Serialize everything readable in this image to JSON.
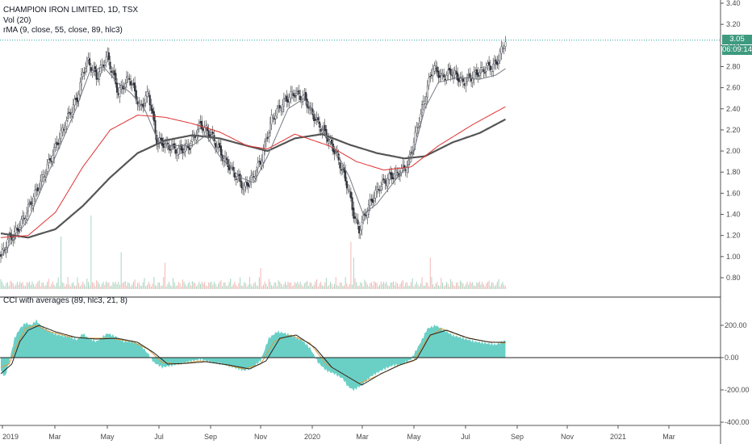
{
  "legend": {
    "symbol_line": "CHAMPION IRON LIMITED, 1D, TSX",
    "volume": "Vol (20)",
    "ma": "rMA (9, close, 55, close, 89, hlc3)",
    "cci": "CCI with averages (89, hlc3, 21, 8)"
  },
  "price_tag": {
    "last": "3.05",
    "countdown": "06:09:14",
    "color": "#3d9a7f"
  },
  "colors": {
    "up": "#26a69a",
    "down": "#ef5350",
    "body_up": "#e0e0e0",
    "ma_fast": "#787b86",
    "ma_mid": "#e03131",
    "ma_slow": "#555555",
    "cci_fill": "#6ad0c6",
    "cci_avg1": "#e09a3c"
  },
  "chart_data": {
    "type": "candlestick",
    "title": "CHAMPION IRON LIMITED, 1D, TSX",
    "x_tick_labels": [
      "2019",
      "Mar",
      "May",
      "Jul",
      "Sep",
      "Nov",
      "2020",
      "Mar",
      "May",
      "Jul",
      "Sep",
      "Nov",
      "2021",
      "Mar"
    ],
    "price_axis": {
      "ticks": [
        "3.40",
        "3.20",
        "3.00",
        "2.80",
        "2.60",
        "2.40",
        "2.20",
        "2.00",
        "1.80",
        "1.60",
        "1.40",
        "1.20",
        "1.00",
        "0.80"
      ],
      "ylim": [
        0.7,
        3.42
      ]
    },
    "cci_axis": {
      "ticks": [
        "200.00",
        "0.00",
        "-200.00",
        "-400.00"
      ],
      "ylim": [
        -420,
        270
      ]
    },
    "last_price": 3.05,
    "price_anchors": [
      [
        0,
        1.0
      ],
      [
        5,
        1.15
      ],
      [
        12,
        1.25
      ],
      [
        18,
        1.4
      ],
      [
        26,
        1.62
      ],
      [
        34,
        1.85
      ],
      [
        42,
        2.1
      ],
      [
        50,
        2.35
      ],
      [
        56,
        2.5
      ],
      [
        60,
        2.75
      ],
      [
        64,
        2.85
      ],
      [
        70,
        2.7
      ],
      [
        78,
        2.9
      ],
      [
        86,
        2.55
      ],
      [
        94,
        2.7
      ],
      [
        102,
        2.4
      ],
      [
        108,
        2.55
      ],
      [
        114,
        2.1
      ],
      [
        122,
        2.05
      ],
      [
        130,
        2.0
      ],
      [
        138,
        2.05
      ],
      [
        146,
        2.25
      ],
      [
        154,
        2.15
      ],
      [
        162,
        1.95
      ],
      [
        170,
        1.8
      ],
      [
        178,
        1.65
      ],
      [
        184,
        1.75
      ],
      [
        190,
        1.9
      ],
      [
        198,
        2.3
      ],
      [
        206,
        2.45
      ],
      [
        214,
        2.55
      ],
      [
        222,
        2.5
      ],
      [
        230,
        2.3
      ],
      [
        238,
        2.15
      ],
      [
        246,
        1.95
      ],
      [
        254,
        1.65
      ],
      [
        258,
        1.4
      ],
      [
        262,
        1.25
      ],
      [
        268,
        1.45
      ],
      [
        276,
        1.65
      ],
      [
        284,
        1.75
      ],
      [
        292,
        1.8
      ],
      [
        298,
        1.88
      ],
      [
        304,
        2.2
      ],
      [
        310,
        2.5
      ],
      [
        316,
        2.8
      ],
      [
        322,
        2.7
      ],
      [
        330,
        2.75
      ],
      [
        338,
        2.65
      ],
      [
        346,
        2.72
      ],
      [
        354,
        2.78
      ],
      [
        362,
        2.82
      ],
      [
        366,
        2.95
      ],
      [
        369,
        3.05
      ]
    ],
    "ma_fast": [
      [
        0,
        1.0
      ],
      [
        20,
        1.35
      ],
      [
        40,
        1.95
      ],
      [
        55,
        2.4
      ],
      [
        65,
        2.75
      ],
      [
        75,
        2.8
      ],
      [
        85,
        2.65
      ],
      [
        95,
        2.55
      ],
      [
        105,
        2.4
      ],
      [
        115,
        2.1
      ],
      [
        125,
        2.05
      ],
      [
        140,
        2.05
      ],
      [
        150,
        2.15
      ],
      [
        160,
        1.95
      ],
      [
        175,
        1.75
      ],
      [
        185,
        1.7
      ],
      [
        195,
        1.95
      ],
      [
        210,
        2.4
      ],
      [
        222,
        2.5
      ],
      [
        235,
        2.2
      ],
      [
        245,
        2.0
      ],
      [
        255,
        1.75
      ],
      [
        265,
        1.4
      ],
      [
        275,
        1.5
      ],
      [
        290,
        1.75
      ],
      [
        300,
        1.9
      ],
      [
        310,
        2.4
      ],
      [
        320,
        2.65
      ],
      [
        335,
        2.7
      ],
      [
        350,
        2.68
      ],
      [
        362,
        2.72
      ],
      [
        369,
        2.78
      ]
    ],
    "ma_mid": [
      [
        0,
        1.18
      ],
      [
        20,
        1.2
      ],
      [
        40,
        1.42
      ],
      [
        60,
        1.85
      ],
      [
        80,
        2.2
      ],
      [
        100,
        2.34
      ],
      [
        120,
        2.32
      ],
      [
        140,
        2.26
      ],
      [
        160,
        2.18
      ],
      [
        180,
        2.05
      ],
      [
        195,
        2.02
      ],
      [
        215,
        2.16
      ],
      [
        240,
        2.05
      ],
      [
        260,
        1.9
      ],
      [
        280,
        1.82
      ],
      [
        300,
        1.85
      ],
      [
        320,
        2.05
      ],
      [
        345,
        2.25
      ],
      [
        369,
        2.42
      ]
    ],
    "ma_slow": [
      [
        0,
        1.22
      ],
      [
        20,
        1.18
      ],
      [
        40,
        1.26
      ],
      [
        60,
        1.48
      ],
      [
        80,
        1.75
      ],
      [
        100,
        1.98
      ],
      [
        120,
        2.1
      ],
      [
        140,
        2.15
      ],
      [
        160,
        2.12
      ],
      [
        180,
        2.05
      ],
      [
        195,
        2.0
      ],
      [
        215,
        2.12
      ],
      [
        235,
        2.16
      ],
      [
        255,
        2.06
      ],
      [
        275,
        1.98
      ],
      [
        295,
        1.93
      ],
      [
        310,
        1.95
      ],
      [
        330,
        2.08
      ],
      [
        350,
        2.17
      ],
      [
        369,
        2.3
      ]
    ],
    "cci": [
      [
        0,
        -80
      ],
      [
        3,
        -120
      ],
      [
        6,
        -30
      ],
      [
        10,
        120
      ],
      [
        14,
        180
      ],
      [
        18,
        215
      ],
      [
        22,
        200
      ],
      [
        26,
        230
      ],
      [
        30,
        190
      ],
      [
        36,
        160
      ],
      [
        42,
        140
      ],
      [
        50,
        130
      ],
      [
        56,
        110
      ],
      [
        60,
        150
      ],
      [
        64,
        120
      ],
      [
        70,
        100
      ],
      [
        78,
        150
      ],
      [
        84,
        130
      ],
      [
        90,
        100
      ],
      [
        96,
        100
      ],
      [
        102,
        80
      ],
      [
        108,
        20
      ],
      [
        112,
        -30
      ],
      [
        118,
        -60
      ],
      [
        124,
        -50
      ],
      [
        130,
        -40
      ],
      [
        138,
        -25
      ],
      [
        146,
        -10
      ],
      [
        154,
        -30
      ],
      [
        162,
        -40
      ],
      [
        170,
        -60
      ],
      [
        178,
        -80
      ],
      [
        184,
        -60
      ],
      [
        190,
        -20
      ],
      [
        196,
        120
      ],
      [
        202,
        160
      ],
      [
        208,
        150
      ],
      [
        214,
        130
      ],
      [
        220,
        110
      ],
      [
        226,
        60
      ],
      [
        232,
        -30
      ],
      [
        238,
        -80
      ],
      [
        244,
        -100
      ],
      [
        250,
        -130
      ],
      [
        254,
        -180
      ],
      [
        258,
        -200
      ],
      [
        264,
        -170
      ],
      [
        270,
        -120
      ],
      [
        278,
        -80
      ],
      [
        286,
        -50
      ],
      [
        294,
        -40
      ],
      [
        300,
        -10
      ],
      [
        306,
        80
      ],
      [
        312,
        180
      ],
      [
        318,
        200
      ],
      [
        324,
        170
      ],
      [
        330,
        140
      ],
      [
        338,
        120
      ],
      [
        346,
        100
      ],
      [
        354,
        90
      ],
      [
        362,
        80
      ],
      [
        369,
        105
      ]
    ],
    "cci_avg1": [
      [
        0,
        -60
      ],
      [
        6,
        -40
      ],
      [
        12,
        80
      ],
      [
        18,
        180
      ],
      [
        26,
        200
      ],
      [
        36,
        160
      ],
      [
        50,
        130
      ],
      [
        64,
        120
      ],
      [
        80,
        120
      ],
      [
        96,
        100
      ],
      [
        108,
        50
      ],
      [
        118,
        -30
      ],
      [
        130,
        -40
      ],
      [
        146,
        -20
      ],
      [
        162,
        -40
      ],
      [
        178,
        -70
      ],
      [
        190,
        -40
      ],
      [
        200,
        100
      ],
      [
        212,
        140
      ],
      [
        226,
        90
      ],
      [
        238,
        -40
      ],
      [
        250,
        -100
      ],
      [
        262,
        -160
      ],
      [
        276,
        -110
      ],
      [
        290,
        -50
      ],
      [
        302,
        -20
      ],
      [
        312,
        120
      ],
      [
        322,
        180
      ],
      [
        338,
        130
      ],
      [
        354,
        100
      ],
      [
        369,
        90
      ]
    ],
    "cci_avg2": [
      [
        0,
        -100
      ],
      [
        8,
        -40
      ],
      [
        14,
        100
      ],
      [
        20,
        170
      ],
      [
        28,
        200
      ],
      [
        40,
        160
      ],
      [
        55,
        125
      ],
      [
        70,
        115
      ],
      [
        85,
        120
      ],
      [
        100,
        95
      ],
      [
        112,
        30
      ],
      [
        122,
        -40
      ],
      [
        136,
        -35
      ],
      [
        150,
        -25
      ],
      [
        166,
        -45
      ],
      [
        182,
        -70
      ],
      [
        194,
        -20
      ],
      [
        204,
        120
      ],
      [
        216,
        140
      ],
      [
        230,
        60
      ],
      [
        242,
        -60
      ],
      [
        254,
        -120
      ],
      [
        264,
        -170
      ],
      [
        278,
        -100
      ],
      [
        292,
        -45
      ],
      [
        304,
        -10
      ],
      [
        314,
        140
      ],
      [
        326,
        170
      ],
      [
        342,
        120
      ],
      [
        358,
        95
      ],
      [
        369,
        95
      ]
    ],
    "volume_spikes": [
      [
        44,
        0.5
      ],
      [
        66,
        0.7
      ],
      [
        88,
        0.35
      ],
      [
        120,
        0.25
      ],
      [
        190,
        0.2
      ],
      [
        256,
        0.45
      ],
      [
        258,
        0.3
      ],
      [
        314,
        0.3
      ]
    ]
  }
}
